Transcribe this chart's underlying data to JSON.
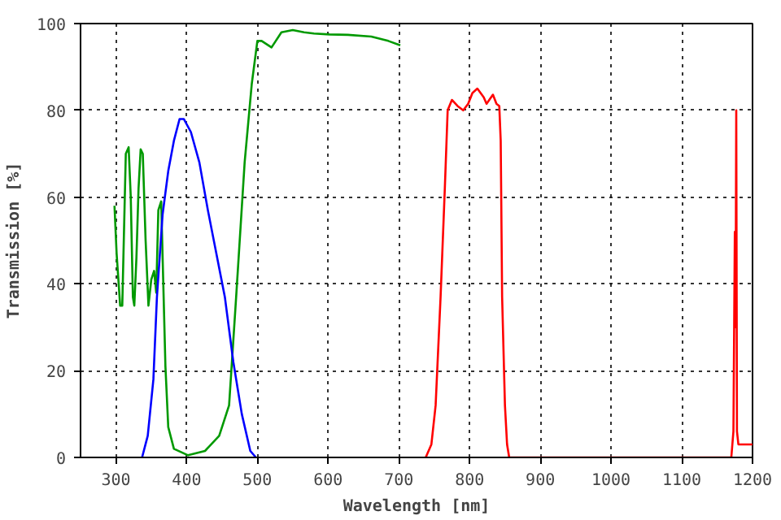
{
  "chart_data": {
    "type": "line",
    "xlabel": "Wavelength [nm]",
    "ylabel": "Transmission [%]",
    "xlim": [
      250,
      1200
    ],
    "ylim": [
      0,
      100
    ],
    "xticks": [
      300,
      400,
      500,
      600,
      700,
      800,
      900,
      1000,
      1100,
      1200
    ],
    "yticks": [
      0,
      20,
      40,
      60,
      80,
      100
    ],
    "grid": true,
    "marker": "none",
    "line_style": "solid",
    "series": [
      {
        "color": "#009900",
        "x": [
          298,
          301,
          306,
          309,
          314,
          318,
          321,
          324,
          326,
          329,
          332,
          335,
          338,
          342,
          346,
          350,
          354,
          357,
          360,
          364,
          367,
          370,
          374,
          382,
          402,
          426,
          446,
          460,
          470,
          482,
          492,
          500,
          506,
          520,
          534,
          550,
          566,
          580,
          602,
          628,
          661,
          685,
          702
        ],
        "values": [
          58,
          47,
          35,
          35,
          70,
          71.5,
          60,
          37,
          35,
          46,
          62,
          71,
          70,
          50,
          35,
          41,
          43,
          38,
          57,
          59,
          40,
          21,
          7,
          2,
          0.5,
          1.5,
          5,
          12,
          37,
          68,
          86,
          96,
          96,
          94.5,
          98,
          98.5,
          98,
          97.7,
          97.5,
          97.4,
          97,
          96,
          95
        ]
      },
      {
        "color": "#0000ff",
        "x": [
          337,
          345,
          353,
          358,
          366,
          374,
          382,
          390,
          396,
          406,
          418,
          430,
          442,
          454,
          466,
          478,
          490,
          498
        ],
        "values": [
          0,
          5,
          18,
          37,
          56,
          66,
          73,
          78,
          78,
          75,
          68,
          57,
          47,
          37,
          22,
          10,
          1.5,
          0
        ]
      },
      {
        "color": "#ff0000",
        "x": [
          738,
          746,
          752,
          759,
          765,
          769,
          775,
          783,
          791,
          798,
          804,
          811,
          820,
          824,
          833,
          838,
          842,
          844,
          846,
          850,
          853,
          856,
          1170,
          1173,
          1175,
          1176,
          1177,
          1178,
          1180,
          1200
        ],
        "values": [
          0,
          3,
          12,
          37,
          62,
          80,
          82.4,
          81,
          80,
          81.5,
          84,
          85,
          83,
          81.5,
          83.6,
          81.5,
          81,
          73,
          37,
          12,
          3,
          0,
          0,
          6,
          52,
          30,
          80,
          6,
          3,
          3
        ]
      }
    ]
  }
}
